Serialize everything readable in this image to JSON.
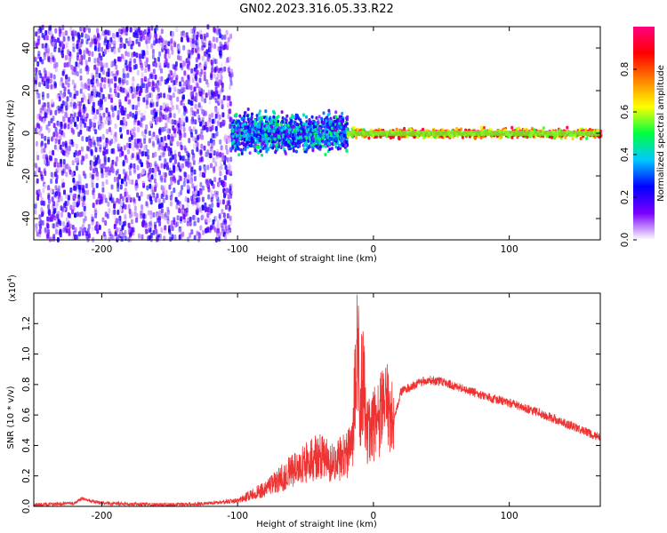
{
  "figure_title": "GN02.2023.316.05.33.R22",
  "colors": {
    "snr_line": "#ee3333",
    "background": "#ffffff",
    "axes": "#000000"
  },
  "chart_data": [
    {
      "type": "heatmap",
      "xlabel": "Height of straight line (km)",
      "ylabel": "Frequency (Hz)",
      "xlim": [
        -250,
        167
      ],
      "ylim": [
        -50,
        50
      ],
      "xticks": [
        -200,
        -100,
        0,
        100
      ],
      "yticks": [
        -40,
        -20,
        0,
        20,
        40
      ],
      "colorbar": {
        "label": "Normalized spectral amplitude",
        "range": [
          0,
          1
        ],
        "ticks": [
          "0.0",
          "0.2",
          "0.4",
          "0.6",
          "0.8"
        ],
        "tick_values": [
          0,
          0.2,
          0.4,
          0.6,
          0.8
        ],
        "colormap": [
          "#ffffff",
          "#7a00ff",
          "#0000ff",
          "#00c8ff",
          "#00ff40",
          "#ffff00",
          "#ff8000",
          "#ff0000",
          "#ff0080"
        ]
      },
      "regions": [
        {
          "x_range": [
            -250,
            -105
          ],
          "description_level": "noise",
          "amplitude": [
            0.02,
            0.25
          ],
          "freq_span": [
            -50,
            50
          ]
        },
        {
          "x_range": [
            -105,
            -20
          ],
          "amplitude": [
            0.1,
            0.5
          ],
          "freq_span": [
            -12,
            12
          ],
          "center_freq": 0
        },
        {
          "x_range": [
            -20,
            167
          ],
          "amplitude": [
            0.5,
            0.95
          ],
          "freq_span": [
            -3,
            3
          ],
          "center_freq": 0
        }
      ]
    },
    {
      "type": "line",
      "xlabel": "Height of straight line (km)",
      "ylabel": "SNR (10 * v/v)",
      "y_multiplier": "(x10",
      "y_multiplier_exp": "4",
      "y_multiplier_close": ")",
      "xlim": [
        -250,
        167
      ],
      "ylim": [
        0,
        1.4
      ],
      "xticks": [
        -200,
        -100,
        0,
        100
      ],
      "yticks": [
        0.0,
        0.2,
        0.4,
        0.6,
        0.8,
        1.0,
        1.2
      ],
      "ytick_labels": [
        "0.0",
        "0.2",
        "0.4",
        "0.6",
        "0.8",
        "1.0",
        "1.2"
      ],
      "series": [
        {
          "x": [
            -250,
            -220,
            -215,
            -200,
            -150,
            -120,
            -100,
            -90,
            -80,
            -70,
            -60,
            -50,
            -40,
            -30,
            -20,
            -15,
            -12,
            -10,
            -8,
            -5,
            0,
            10,
            15,
            20,
            30,
            40,
            50,
            60,
            80,
            100,
            120,
            140,
            167
          ],
          "y": [
            0.01,
            0.02,
            0.05,
            0.02,
            0.01,
            0.02,
            0.04,
            0.08,
            0.12,
            0.18,
            0.25,
            0.3,
            0.35,
            0.3,
            0.35,
            0.45,
            1.3,
            0.6,
            0.95,
            0.5,
            0.55,
            0.7,
            0.55,
            0.75,
            0.8,
            0.83,
            0.82,
            0.79,
            0.73,
            0.68,
            0.62,
            0.55,
            0.45
          ]
        }
      ]
    }
  ]
}
